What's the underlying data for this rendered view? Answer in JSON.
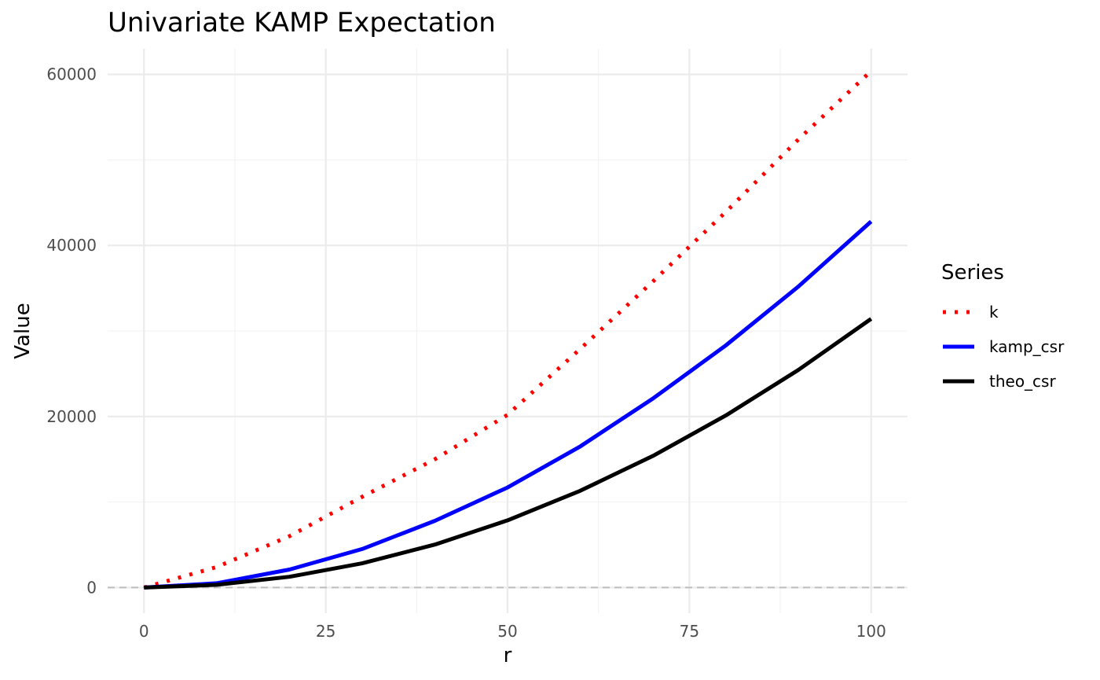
{
  "chart_data": {
    "type": "line",
    "title": "Univariate KAMP Expectation",
    "xlabel": "r",
    "ylabel": "Value",
    "xlim": [
      -5,
      105
    ],
    "ylim": [
      -3000,
      63000
    ],
    "x_ticks": [
      0,
      25,
      50,
      75,
      100
    ],
    "y_ticks": [
      0,
      20000,
      40000,
      60000
    ],
    "x_tick_labels": [
      "0",
      "25",
      "50",
      "75",
      "100"
    ],
    "y_tick_labels": [
      "0",
      "20000",
      "40000",
      "60000"
    ],
    "grid": true,
    "reference_line": {
      "y": 0,
      "style": "dashed",
      "color": "#bebebe"
    },
    "legend": {
      "title": "Series",
      "position": "right"
    },
    "x": [
      0,
      10,
      20,
      30,
      40,
      50,
      60,
      70,
      80,
      90,
      100
    ],
    "series": [
      {
        "name": "k",
        "color": "#ff0000",
        "style": "dotted",
        "values": [
          0,
          2400,
          6000,
          10600,
          15000,
          20200,
          27900,
          35800,
          43900,
          52400,
          60400
        ]
      },
      {
        "name": "kamp_csr",
        "color": "#0000ff",
        "style": "solid",
        "values": [
          0,
          500,
          2100,
          4500,
          7800,
          11700,
          16500,
          22100,
          28300,
          35200,
          42800
        ]
      },
      {
        "name": "theo_csr",
        "color": "#000000",
        "style": "solid",
        "values": [
          0,
          314,
          1257,
          2827,
          5027,
          7854,
          11310,
          15394,
          20106,
          25447,
          31416
        ]
      }
    ]
  }
}
